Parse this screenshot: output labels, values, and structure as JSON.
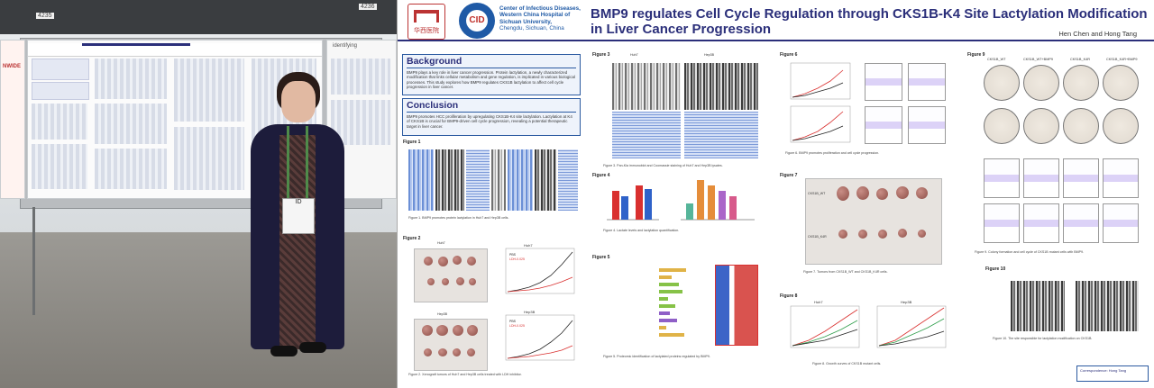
{
  "photo": {
    "booth_numbers": [
      "4235",
      "4236"
    ],
    "side_sign": "identifying",
    "side_banner": "NWIDE",
    "badge_text": "ID"
  },
  "poster": {
    "institution": {
      "logo1_text": "华西医院",
      "logo2_text": "CID",
      "lines": [
        "Center of Infectious Diseases,",
        "Western China Hospital of",
        "Sichuan University,",
        "Chengdu, Sichuan, China"
      ]
    },
    "title_line1": "BMP9 regulates Cell Cycle Regulation through CKS1B-K4 Site Lactylation Modification",
    "title_line2": "in Liver Cancer Progression",
    "authors": "Hen Chen and Hong Tang",
    "background": {
      "heading": "Background",
      "text": "BMP9 plays a key role in liver cancer progression. Protein lactylation, a newly characterized modification that links cellular metabolism and gene regulation, is implicated in various biological processes. This study explores how BMP9 regulates CKS1B lactylation to affect cell cycle progression in liver cancer."
    },
    "conclusion": {
      "heading": "Conclusion",
      "text": "BMP9 promotes HCC proliferation by upregulating CKS1B-K4 site lactylation. Lactylation at K4 of CKS1B is crucial for BMP9-driven cell cycle progression, revealing a potential therapeutic target in liver cancer."
    },
    "figures": [
      {
        "label": "Figure 1",
        "caption": "Figure 1. BMP9 promotes protein lactylation in Huh7 and Hep3B cells."
      },
      {
        "label": "Figure 2",
        "caption": "Figure 2. Xenograft tumors of Huh7 and Hep3B cells treated with LDH inhibitor."
      },
      {
        "label": "Figure 3",
        "caption": "Figure 3. Pan-Kla immunoblot and Coomassie staining of Huh7 and Hep3B lysates."
      },
      {
        "label": "Figure 4",
        "caption": "Figure 4. Lactate levels and lactylation quantification."
      },
      {
        "label": "Figure 5",
        "caption": "Figure 5. Proteomic identification of lactylated proteins regulated by BMP9."
      },
      {
        "label": "Figure 6",
        "caption": "Figure 6. BMP9 promotes proliferation and cell cycle progression."
      },
      {
        "label": "Figure 7",
        "caption": "Figure 7. Tumors from CKS1B_WT and CKS1B_K4R cells."
      },
      {
        "label": "Figure 8",
        "caption": "Figure 8. Growth curves of CKS1B mutant cells."
      },
      {
        "label": "Figure 9",
        "caption": "Figure 9. Colony formation and cell cycle of CKS1B mutant cells with BMP9."
      },
      {
        "label": "Figure 10",
        "caption": "Figure 10. The site responsible for lactylation modification on CKS1B."
      }
    ],
    "sample_labels": {
      "huh7": "Huh7",
      "hep3b": "Hep3B",
      "ctrl": "PBS",
      "lac": "LDH-0.025",
      "wt": "CKS1B_WT",
      "k4r": "CKS1B_K4R",
      "wt_bmp9": "CKS1B_WT+BMP9",
      "k4r_bmp9": "CKS1B_K4R+BMP9"
    },
    "contact": "Correspondence: Hong Tang"
  },
  "colors": {
    "poster_title": "#2b2f7a",
    "institution_blue": "#1f5aa6",
    "box_border": "#2b5aa0",
    "box_fill": "#eef3fb"
  }
}
